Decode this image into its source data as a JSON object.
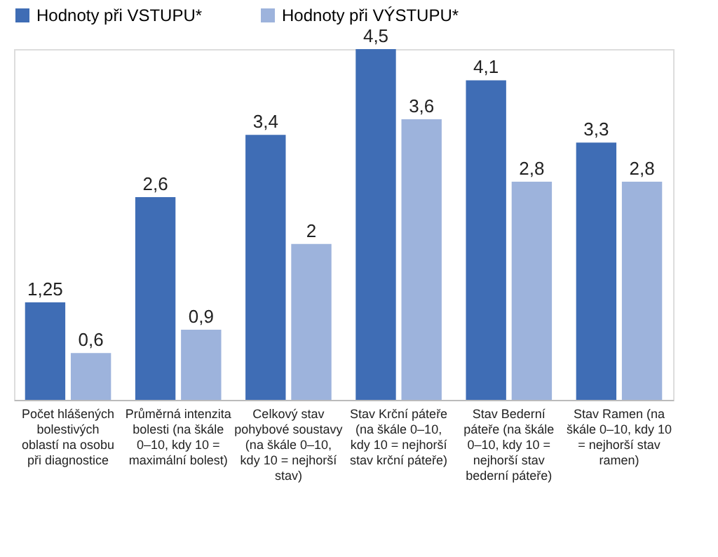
{
  "chart_data": {
    "type": "bar",
    "categories": [
      "Počet hlášených bolestivých oblastí na osobu při diagnostice",
      "Průměrná intenzita bolesti (na škále 0–10, kdy 10 = maximální bolest)",
      "Celkový stav pohybové soustavy (na škále 0–10, kdy 10 = nejhorší stav)",
      "Stav Krční páteře (na škále 0–10, kdy 10 = nejhorší stav krční páteře)",
      "Stav Bederní páteře (na škále 0–10, kdy 10 = nejhorší stav bederní páteře)",
      "Stav Ramen (na škále 0–10, kdy 10 = nejhorší stav ramen)"
    ],
    "series": [
      {
        "name": "Hodnoty při VSTUPU*",
        "color": "#3f6db5",
        "values": [
          1.25,
          2.6,
          3.4,
          4.5,
          4.1,
          3.3
        ],
        "value_labels": [
          "1,25",
          "2,6",
          "3,4",
          "4,5",
          "4,1",
          "3,3"
        ]
      },
      {
        "name": "Hodnoty při  VÝSTUPU*",
        "color": "#9db3dc",
        "values": [
          0.6,
          0.9,
          2,
          3.6,
          2.8,
          2.8
        ],
        "value_labels": [
          "0,6",
          "0,9",
          "2",
          "3,6",
          "2,8",
          "2,8"
        ]
      }
    ],
    "legend": "top",
    "grid": false
  }
}
